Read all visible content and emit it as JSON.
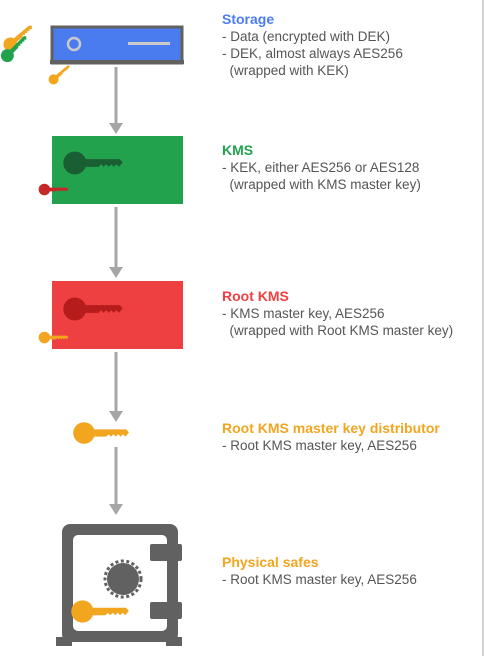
{
  "colors": {
    "storage": "#4a7cf0",
    "kms": "#23a24d",
    "root_kms": "#ee4040",
    "distributor": "#f2a51f",
    "safe": "#616161",
    "text": "#555555",
    "arrow": "#a6a6a6"
  },
  "nodes": [
    {
      "id": "storage",
      "title": "Storage",
      "lines": [
        "- Data (encrypted with DEK)",
        "- DEK, almost always AES256",
        "  (wrapped with KEK)"
      ]
    },
    {
      "id": "kms",
      "title": "KMS",
      "lines": [
        "- KEK, either AES256 or AES128",
        "  (wrapped with KMS master key)"
      ]
    },
    {
      "id": "root_kms",
      "title": "Root KMS",
      "lines": [
        "- KMS master key, AES256",
        "  (wrapped with Root KMS master key)"
      ]
    },
    {
      "id": "distributor",
      "title": "Root KMS master key distributor",
      "lines": [
        "- Root KMS master key, AES256"
      ]
    },
    {
      "id": "safes",
      "title": "Physical safes",
      "lines": [
        "- Root KMS master key, AES256"
      ]
    }
  ]
}
